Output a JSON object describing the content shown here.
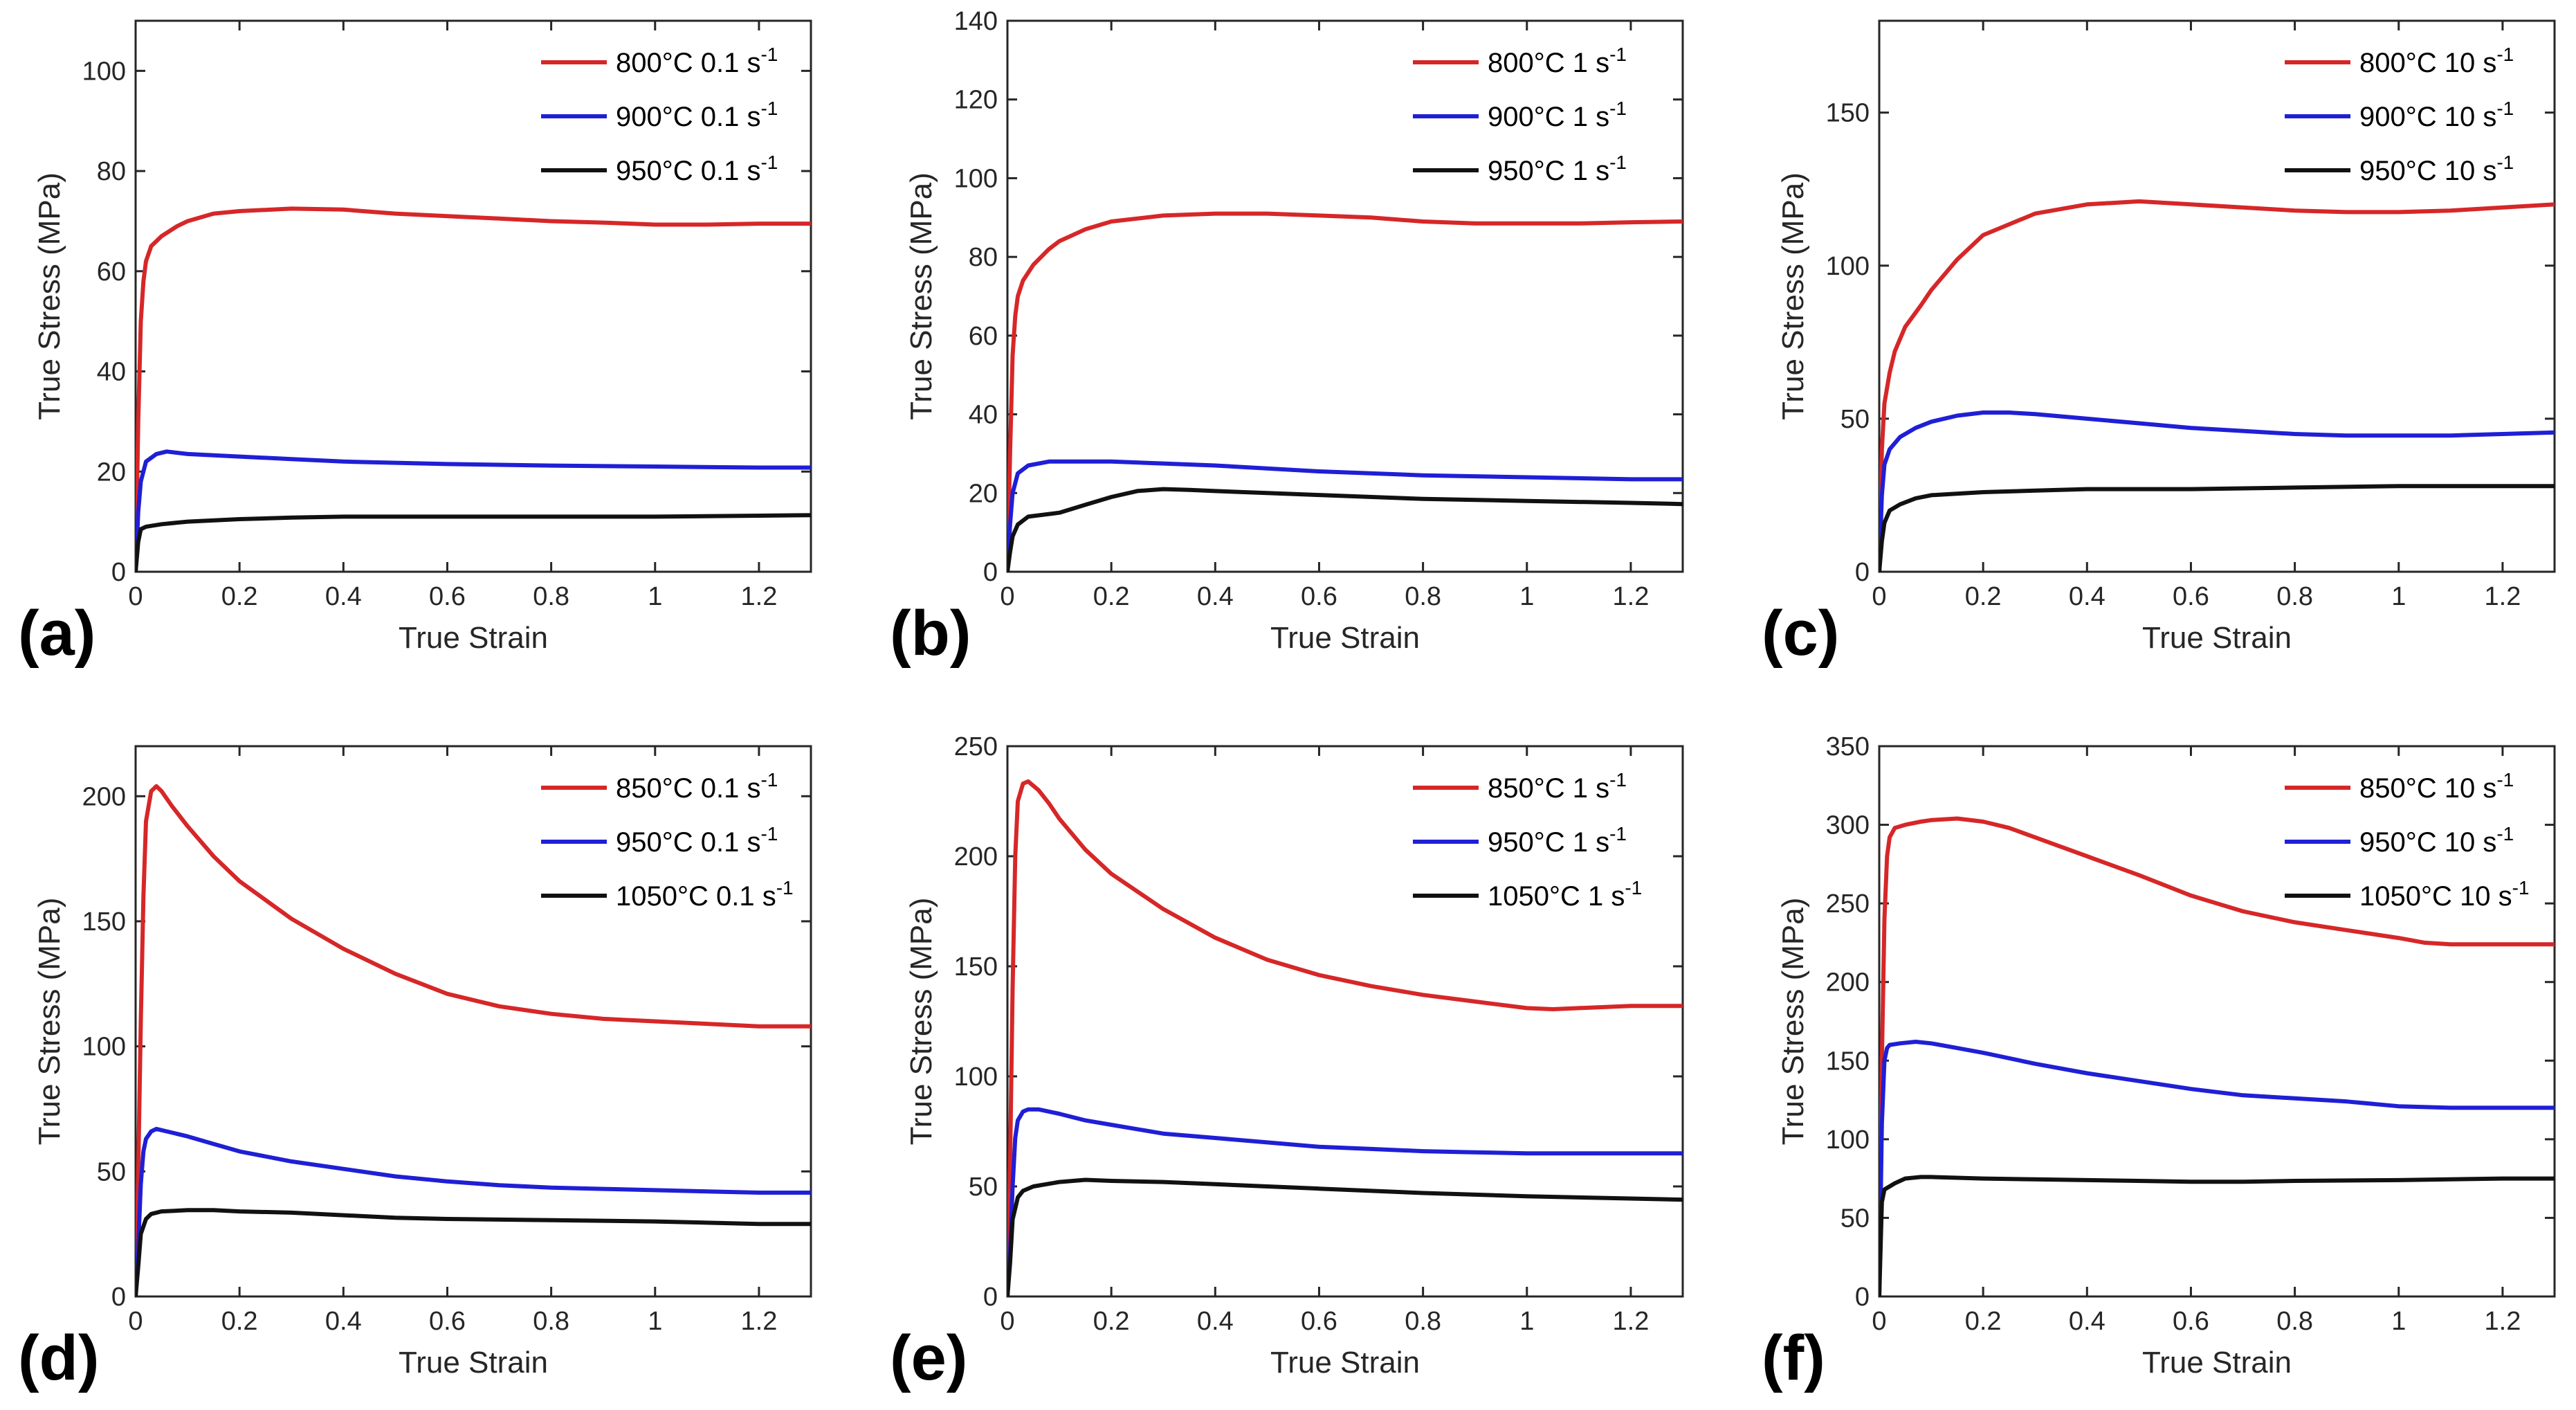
{
  "colors": {
    "red": "#d62728",
    "blue": "#1f1fd6",
    "black": "#111111",
    "axis": "#262626"
  },
  "chart_data": [
    {
      "type": "line",
      "panel_label": "(a)",
      "xlabel": "True Strain",
      "ylabel": "True Stress (MPa)",
      "xlim": [
        0,
        1.3
      ],
      "ylim": [
        0,
        110
      ],
      "xticks": [
        0,
        0.2,
        0.4,
        0.6,
        0.8,
        1,
        1.2
      ],
      "xtick_labels": [
        "0",
        "0.2",
        "0.4",
        "0.6",
        "0.8",
        "1",
        "1.2"
      ],
      "yticks": [
        0,
        20,
        40,
        60,
        80,
        100
      ],
      "ytick_labels": [
        "0",
        "20",
        "40",
        "60",
        "80",
        "100"
      ],
      "legend_location": "top-right",
      "series": [
        {
          "name": "800°C 0.1 s",
          "unit_exp": "-1",
          "color": "red",
          "x": [
            0,
            0.005,
            0.01,
            0.015,
            0.02,
            0.03,
            0.05,
            0.08,
            0.1,
            0.15,
            0.2,
            0.3,
            0.4,
            0.5,
            0.6,
            0.7,
            0.8,
            0.9,
            1.0,
            1.1,
            1.2,
            1.3
          ],
          "y": [
            0,
            30,
            50,
            58,
            62,
            65,
            67,
            69,
            70,
            71.5,
            72,
            72.5,
            72.3,
            71.5,
            71,
            70.5,
            70,
            69.7,
            69.3,
            69.3,
            69.5,
            69.5
          ]
        },
        {
          "name": "900°C 0.1 s",
          "unit_exp": "-1",
          "color": "blue",
          "x": [
            0,
            0.005,
            0.01,
            0.02,
            0.04,
            0.06,
            0.1,
            0.2,
            0.3,
            0.4,
            0.6,
            0.8,
            1.0,
            1.2,
            1.3
          ],
          "y": [
            0,
            12,
            18,
            22,
            23.5,
            24,
            23.5,
            23,
            22.5,
            22,
            21.5,
            21.2,
            21,
            20.8,
            20.8
          ]
        },
        {
          "name": "950°C 0.1 s",
          "unit_exp": "-1",
          "color": "black",
          "x": [
            0,
            0.005,
            0.01,
            0.02,
            0.05,
            0.1,
            0.2,
            0.3,
            0.4,
            0.6,
            0.8,
            1.0,
            1.2,
            1.3
          ],
          "y": [
            0,
            6,
            8.5,
            9,
            9.5,
            10,
            10.5,
            10.8,
            11,
            11,
            11,
            11,
            11.2,
            11.3
          ]
        }
      ]
    },
    {
      "type": "line",
      "panel_label": "(b)",
      "xlabel": "True Strain",
      "ylabel": "True Stress (MPa)",
      "xlim": [
        0,
        1.3
      ],
      "ylim": [
        0,
        140
      ],
      "xticks": [
        0,
        0.2,
        0.4,
        0.6,
        0.8,
        1,
        1.2
      ],
      "xtick_labels": [
        "0",
        "0.2",
        "0.4",
        "0.6",
        "0.8",
        "1",
        "1.2"
      ],
      "yticks": [
        0,
        20,
        40,
        60,
        80,
        100,
        120,
        140
      ],
      "ytick_labels": [
        "0",
        "20",
        "40",
        "60",
        "80",
        "100",
        "120",
        "140"
      ],
      "legend_location": "top-right",
      "series": [
        {
          "name": "800°C 1 s",
          "unit_exp": "-1",
          "color": "red",
          "x": [
            0,
            0.005,
            0.01,
            0.015,
            0.02,
            0.03,
            0.05,
            0.08,
            0.1,
            0.15,
            0.2,
            0.3,
            0.4,
            0.5,
            0.6,
            0.7,
            0.8,
            0.9,
            1.0,
            1.1,
            1.2,
            1.3
          ],
          "y": [
            0,
            30,
            55,
            65,
            70,
            74,
            78,
            82,
            84,
            87,
            89,
            90.5,
            91,
            91,
            90.5,
            90,
            89,
            88.5,
            88.5,
            88.5,
            88.8,
            89
          ]
        },
        {
          "name": "900°C 1 s",
          "unit_exp": "-1",
          "color": "blue",
          "x": [
            0,
            0.005,
            0.01,
            0.02,
            0.04,
            0.08,
            0.1,
            0.2,
            0.3,
            0.4,
            0.6,
            0.8,
            1.0,
            1.2,
            1.3
          ],
          "y": [
            0,
            12,
            20,
            25,
            27,
            28,
            28,
            28,
            27.5,
            27,
            25.5,
            24.5,
            24,
            23.5,
            23.5
          ]
        },
        {
          "name": "950°C 1 s",
          "unit_exp": "-1",
          "color": "black",
          "x": [
            0,
            0.005,
            0.01,
            0.02,
            0.04,
            0.1,
            0.15,
            0.2,
            0.25,
            0.3,
            0.35,
            0.4,
            0.5,
            0.6,
            0.8,
            1.0,
            1.2,
            1.3
          ],
          "y": [
            0,
            5,
            9,
            12,
            14,
            15,
            17,
            19,
            20.5,
            21,
            20.8,
            20.5,
            20,
            19.5,
            18.5,
            18,
            17.5,
            17.2
          ]
        }
      ]
    },
    {
      "type": "line",
      "panel_label": "(c)",
      "xlabel": "True Strain",
      "ylabel": "True Stress (MPa)",
      "xlim": [
        0,
        1.3
      ],
      "ylim": [
        0,
        180
      ],
      "xticks": [
        0,
        0.2,
        0.4,
        0.6,
        0.8,
        1,
        1.2
      ],
      "xtick_labels": [
        "0",
        "0.2",
        "0.4",
        "0.6",
        "0.8",
        "1",
        "1.2"
      ],
      "yticks": [
        0,
        50,
        100,
        150
      ],
      "ytick_labels": [
        "0",
        "50",
        "100",
        "150"
      ],
      "legend_location": "top-right",
      "series": [
        {
          "name": "800°C 10 s",
          "unit_exp": "-1",
          "color": "red",
          "x": [
            0,
            0.005,
            0.01,
            0.02,
            0.03,
            0.05,
            0.08,
            0.1,
            0.15,
            0.2,
            0.3,
            0.4,
            0.5,
            0.6,
            0.7,
            0.8,
            0.9,
            1.0,
            1.1,
            1.2,
            1.3
          ],
          "y": [
            0,
            40,
            55,
            65,
            72,
            80,
            87,
            92,
            102,
            110,
            117,
            120,
            121,
            120,
            119,
            118,
            117.5,
            117.5,
            118,
            119,
            120
          ]
        },
        {
          "name": "900°C 10 s",
          "unit_exp": "-1",
          "color": "blue",
          "x": [
            0,
            0.005,
            0.01,
            0.02,
            0.04,
            0.07,
            0.1,
            0.15,
            0.2,
            0.25,
            0.3,
            0.4,
            0.5,
            0.6,
            0.7,
            0.8,
            0.9,
            1.0,
            1.1,
            1.2,
            1.3
          ],
          "y": [
            0,
            25,
            35,
            40,
            44,
            47,
            49,
            51,
            52,
            52,
            51.5,
            50,
            48.5,
            47,
            46,
            45,
            44.5,
            44.5,
            44.5,
            45,
            45.5
          ]
        },
        {
          "name": "950°C 10 s",
          "unit_exp": "-1",
          "color": "black",
          "x": [
            0,
            0.005,
            0.01,
            0.02,
            0.04,
            0.07,
            0.1,
            0.2,
            0.3,
            0.4,
            0.6,
            0.8,
            1.0,
            1.2,
            1.3
          ],
          "y": [
            0,
            10,
            16,
            20,
            22,
            24,
            25,
            26,
            26.5,
            27,
            27,
            27.5,
            28,
            28,
            28
          ]
        }
      ]
    },
    {
      "type": "line",
      "panel_label": "(d)",
      "xlabel": "True Strain",
      "ylabel": "True Stress (MPa)",
      "xlim": [
        0,
        1.3
      ],
      "ylim": [
        0,
        220
      ],
      "xticks": [
        0,
        0.2,
        0.4,
        0.6,
        0.8,
        1,
        1.2
      ],
      "xtick_labels": [
        "0",
        "0.2",
        "0.4",
        "0.6",
        "0.8",
        "1",
        "1.2"
      ],
      "yticks": [
        0,
        50,
        100,
        150,
        200
      ],
      "ytick_labels": [
        "0",
        "50",
        "100",
        "150",
        "200"
      ],
      "legend_location": "top-right",
      "series": [
        {
          "name": "850°C 0.1 s",
          "unit_exp": "-1",
          "color": "red",
          "x": [
            0,
            0.005,
            0.01,
            0.015,
            0.02,
            0.03,
            0.04,
            0.05,
            0.07,
            0.1,
            0.15,
            0.2,
            0.3,
            0.4,
            0.5,
            0.6,
            0.7,
            0.8,
            0.9,
            1.0,
            1.1,
            1.2,
            1.3
          ],
          "y": [
            0,
            50,
            110,
            160,
            190,
            202,
            204,
            202,
            196,
            188,
            176,
            166,
            151,
            139,
            129,
            121,
            116,
            113,
            111,
            110,
            109,
            108,
            108
          ]
        },
        {
          "name": "950°C 0.1 s",
          "unit_exp": "-1",
          "color": "blue",
          "x": [
            0,
            0.005,
            0.01,
            0.015,
            0.02,
            0.03,
            0.04,
            0.06,
            0.1,
            0.15,
            0.2,
            0.3,
            0.4,
            0.5,
            0.6,
            0.7,
            0.8,
            0.9,
            1.0,
            1.1,
            1.2,
            1.3
          ],
          "y": [
            0,
            20,
            45,
            58,
            63,
            66,
            67,
            66,
            64,
            61,
            58,
            54,
            51,
            48,
            46,
            44.5,
            43.5,
            43,
            42.5,
            42,
            41.5,
            41.5
          ]
        },
        {
          "name": "1050°C 0.1 s",
          "unit_exp": "-1",
          "color": "black",
          "x": [
            0,
            0.005,
            0.01,
            0.02,
            0.03,
            0.05,
            0.1,
            0.15,
            0.2,
            0.3,
            0.4,
            0.5,
            0.6,
            0.8,
            1.0,
            1.2,
            1.3
          ],
          "y": [
            0,
            12,
            25,
            31,
            33,
            34,
            34.5,
            34.5,
            34,
            33.5,
            32.5,
            31.5,
            31,
            30.5,
            30,
            29,
            29
          ]
        }
      ]
    },
    {
      "type": "line",
      "panel_label": "(e)",
      "xlabel": "True Strain",
      "ylabel": "True Stress (MPa)",
      "xlim": [
        0,
        1.3
      ],
      "ylim": [
        0,
        250
      ],
      "xticks": [
        0,
        0.2,
        0.4,
        0.6,
        0.8,
        1,
        1.2
      ],
      "xtick_labels": [
        "0",
        "0.2",
        "0.4",
        "0.6",
        "0.8",
        "1",
        "1.2"
      ],
      "yticks": [
        0,
        50,
        100,
        150,
        200,
        250
      ],
      "ytick_labels": [
        "0",
        "50",
        "100",
        "150",
        "200",
        "250"
      ],
      "legend_location": "top-right",
      "series": [
        {
          "name": "850°C 1 s",
          "unit_exp": "-1",
          "color": "red",
          "x": [
            0,
            0.005,
            0.01,
            0.015,
            0.02,
            0.03,
            0.04,
            0.06,
            0.08,
            0.1,
            0.15,
            0.2,
            0.3,
            0.4,
            0.5,
            0.6,
            0.7,
            0.8,
            0.9,
            1.0,
            1.05,
            1.1,
            1.2,
            1.3
          ],
          "y": [
            0,
            60,
            140,
            200,
            225,
            233,
            234,
            230,
            224,
            217,
            203,
            192,
            176,
            163,
            153,
            146,
            141,
            137,
            134,
            131,
            130.5,
            131,
            132,
            132
          ]
        },
        {
          "name": "950°C 1 s",
          "unit_exp": "-1",
          "color": "blue",
          "x": [
            0,
            0.005,
            0.01,
            0.015,
            0.02,
            0.03,
            0.04,
            0.06,
            0.1,
            0.15,
            0.2,
            0.3,
            0.4,
            0.5,
            0.6,
            0.7,
            0.8,
            0.9,
            1.0,
            1.1,
            1.2,
            1.3
          ],
          "y": [
            0,
            20,
            50,
            72,
            80,
            84,
            85,
            85,
            83,
            80,
            78,
            74,
            72,
            70,
            68,
            67,
            66,
            65.5,
            65,
            65,
            65,
            65
          ]
        },
        {
          "name": "1050°C 1 s",
          "unit_exp": "-1",
          "color": "black",
          "x": [
            0,
            0.005,
            0.01,
            0.02,
            0.03,
            0.05,
            0.1,
            0.15,
            0.2,
            0.3,
            0.4,
            0.5,
            0.6,
            0.8,
            1.0,
            1.2,
            1.3
          ],
          "y": [
            0,
            15,
            35,
            45,
            48,
            50,
            52,
            53,
            52.5,
            52,
            51,
            50,
            49,
            47,
            45.5,
            44.5,
            44
          ]
        }
      ]
    },
    {
      "type": "line",
      "panel_label": "(f)",
      "xlabel": "True Strain",
      "ylabel": "True Stress (MPa)",
      "xlim": [
        0,
        1.3
      ],
      "ylim": [
        0,
        350
      ],
      "xticks": [
        0,
        0.2,
        0.4,
        0.6,
        0.8,
        1,
        1.2
      ],
      "xtick_labels": [
        "0",
        "0.2",
        "0.4",
        "0.6",
        "0.8",
        "1",
        "1.2"
      ],
      "yticks": [
        0,
        50,
        100,
        150,
        200,
        250,
        300,
        350
      ],
      "ytick_labels": [
        "0",
        "50",
        "100",
        "150",
        "200",
        "250",
        "300",
        "350"
      ],
      "legend_location": "top-right",
      "series": [
        {
          "name": "850°C 10 s",
          "unit_exp": "-1",
          "color": "red",
          "x": [
            0,
            0.005,
            0.01,
            0.015,
            0.02,
            0.03,
            0.05,
            0.08,
            0.1,
            0.15,
            0.2,
            0.25,
            0.3,
            0.4,
            0.5,
            0.6,
            0.7,
            0.8,
            0.9,
            1.0,
            1.05,
            1.1,
            1.2,
            1.3
          ],
          "y": [
            0,
            150,
            240,
            280,
            292,
            298,
            300,
            302,
            303,
            304,
            302,
            298,
            292,
            280,
            268,
            255,
            245,
            238,
            233,
            228,
            225,
            224,
            224,
            224
          ]
        },
        {
          "name": "950°C 10 s",
          "unit_exp": "-1",
          "color": "blue",
          "x": [
            0,
            0.005,
            0.01,
            0.015,
            0.02,
            0.04,
            0.07,
            0.1,
            0.15,
            0.2,
            0.3,
            0.4,
            0.5,
            0.6,
            0.7,
            0.8,
            0.9,
            1.0,
            1.1,
            1.2,
            1.3
          ],
          "y": [
            0,
            110,
            150,
            158,
            160,
            161,
            162,
            161,
            158,
            155,
            148,
            142,
            137,
            132,
            128,
            126,
            124,
            121,
            120,
            120,
            120
          ]
        },
        {
          "name": "1050°C 10 s",
          "unit_exp": "-1",
          "color": "black",
          "x": [
            0,
            0.005,
            0.01,
            0.02,
            0.03,
            0.05,
            0.08,
            0.1,
            0.2,
            0.3,
            0.4,
            0.5,
            0.6,
            0.7,
            0.8,
            1.0,
            1.2,
            1.3
          ],
          "y": [
            0,
            60,
            68,
            70,
            72,
            75,
            76,
            76,
            75,
            74.5,
            74,
            73.5,
            73,
            73,
            73.5,
            74,
            75,
            75
          ]
        }
      ]
    }
  ]
}
